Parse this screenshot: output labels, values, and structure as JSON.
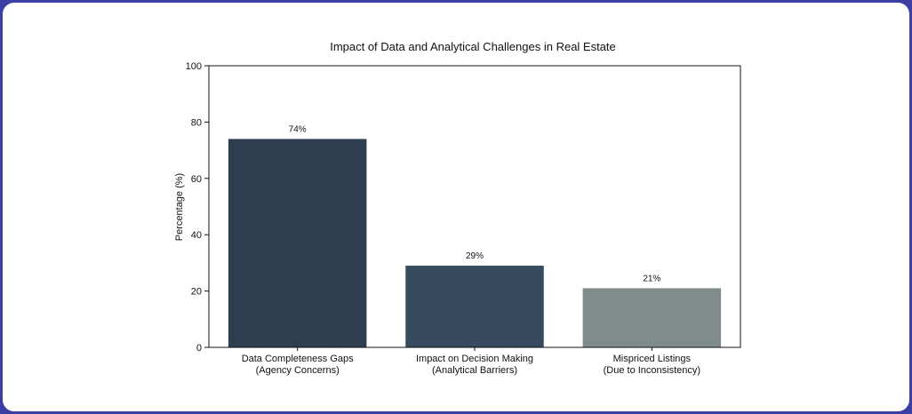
{
  "chart_data": {
    "type": "bar",
    "title": "Impact of Data and Analytical Challenges in Real Estate",
    "xlabel": "",
    "ylabel": "Percentage (%)",
    "ylim": [
      0,
      100
    ],
    "yticks": [
      "0",
      "20",
      "40",
      "60",
      "80",
      "100"
    ],
    "categories": [
      [
        "Data Completeness Gaps",
        "(Agency Concerns)"
      ],
      [
        "Impact on Decision Making",
        "(Analytical Barriers)"
      ],
      [
        "Mispriced Listings",
        "(Due to Inconsistency)"
      ]
    ],
    "values": [
      74,
      29,
      21
    ],
    "data_labels": [
      "74%",
      "29%",
      "21%"
    ],
    "colors": [
      "#2e3d4f",
      "#364b5e",
      "#7f8c8b"
    ],
    "grid": false,
    "legend": "none"
  }
}
